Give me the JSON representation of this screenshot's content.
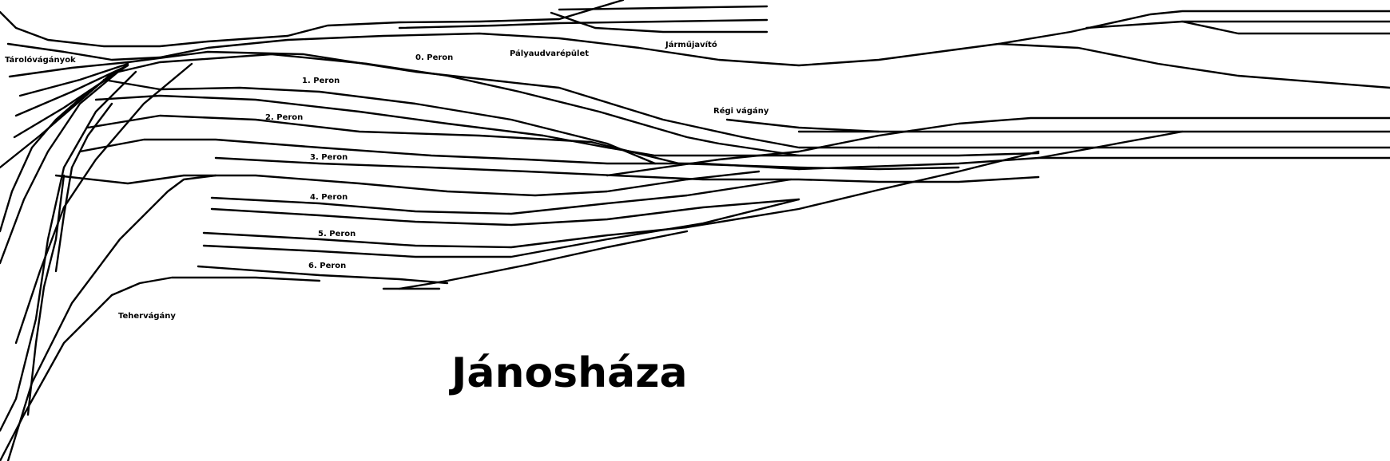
{
  "title": "Jánosháza",
  "labels": {
    "storage_tracks": "Tárolóvágányok",
    "platform_0": "0. Peron",
    "station_building": "Pályaudvarépület",
    "depot": "Járműjavító",
    "platform_1": "1. Peron",
    "old_track": "Régi vágány",
    "platform_2": "2. Peron",
    "platform_3": "3. Peron",
    "platform_4": "4. Peron",
    "platform_5": "5. Peron",
    "platform_6": "6. Peron",
    "freight_track": "Tehervágány"
  }
}
